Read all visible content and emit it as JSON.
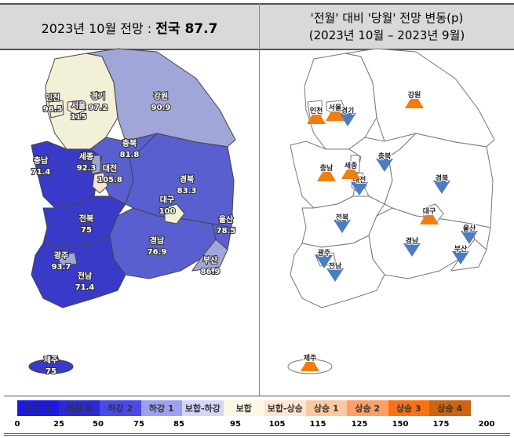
{
  "left_panel": {
    "title_prefix": "2023년 10월 전망 : ",
    "title_value": "전국 87.7"
  },
  "right_panel": {
    "title_line1": "'전월' 대비 '당월' 전망 변동(p)",
    "title_line2": "(2023년 10월 – 2023년 9월)"
  },
  "regions": [
    {
      "name": "경기",
      "value": "97.2",
      "color": "#f3f0d8",
      "change": "down"
    },
    {
      "name": "강원",
      "value": "90.9",
      "color": "#a0a6d8",
      "change": "up"
    },
    {
      "name": "충남",
      "value": "71.4",
      "color": "#3a3ac8",
      "change": "up"
    },
    {
      "name": "충북",
      "value": "81.8",
      "color": "#5a5fd0",
      "change": "down"
    },
    {
      "name": "경북",
      "value": "83.3",
      "color": "#5a5fd0",
      "change": "down"
    },
    {
      "name": "전북",
      "value": "75",
      "color": "#3a3ac8",
      "change": "down"
    },
    {
      "name": "경남",
      "value": "76.9",
      "color": "#5a5fd0",
      "change": "down"
    },
    {
      "name": "전남",
      "value": "71.4",
      "color": "#3a3ac8",
      "change": "down"
    },
    {
      "name": "울산",
      "value": "78.5",
      "color": "#5a5fd0",
      "change": "down"
    },
    {
      "name": "부산",
      "value": "86.9",
      "color": "#a0a6d8",
      "change": "down"
    },
    {
      "name": "대구",
      "value": "100",
      "color": "#f3f0d8",
      "change": "up"
    },
    {
      "name": "대전",
      "value": "105.8",
      "color": "#f8e4d0",
      "change": "down"
    },
    {
      "name": "세종",
      "value": "92.3",
      "color": "#a0a6d8",
      "change": "up"
    },
    {
      "name": "서울",
      "value": "115",
      "color": "#f8e4d0",
      "change": "up"
    },
    {
      "name": "인천",
      "value": "96.5",
      "color": "#f3f0d8",
      "change": "up"
    },
    {
      "name": "광주",
      "value": "93.7",
      "color": "#a0a6d8",
      "change": "down"
    },
    {
      "name": "제주",
      "value": "75",
      "color": "#3a3ac8",
      "change": "up"
    }
  ],
  "change_colors": {
    "up": "#f07d10",
    "down": "#4a7cc0"
  },
  "legend": [
    {
      "label": "하강 4",
      "color": "#1a1ae0"
    },
    {
      "label": "하강 3",
      "color": "#2a2ad0"
    },
    {
      "label": "하강 2",
      "color": "#4a4ae8"
    },
    {
      "label": "하강 1",
      "color": "#9da0f0"
    },
    {
      "label": "보합-하강",
      "color": "#d4d6f8"
    },
    {
      "label": "보합",
      "color": "#fdf7e3"
    },
    {
      "label": "보합-상승",
      "color": "#fbe6d2"
    },
    {
      "label": "상승 1",
      "color": "#fbc8a2"
    },
    {
      "label": "상승 2",
      "color": "#fca066"
    },
    {
      "label": "상승 3",
      "color": "#fb7212"
    },
    {
      "label": "상승 4",
      "color": "#cc6410"
    }
  ],
  "legend_ticks": [
    "0",
    "25",
    "50",
    "75",
    "85",
    "95",
    "105",
    "115",
    "125",
    "150",
    "175",
    "200"
  ]
}
